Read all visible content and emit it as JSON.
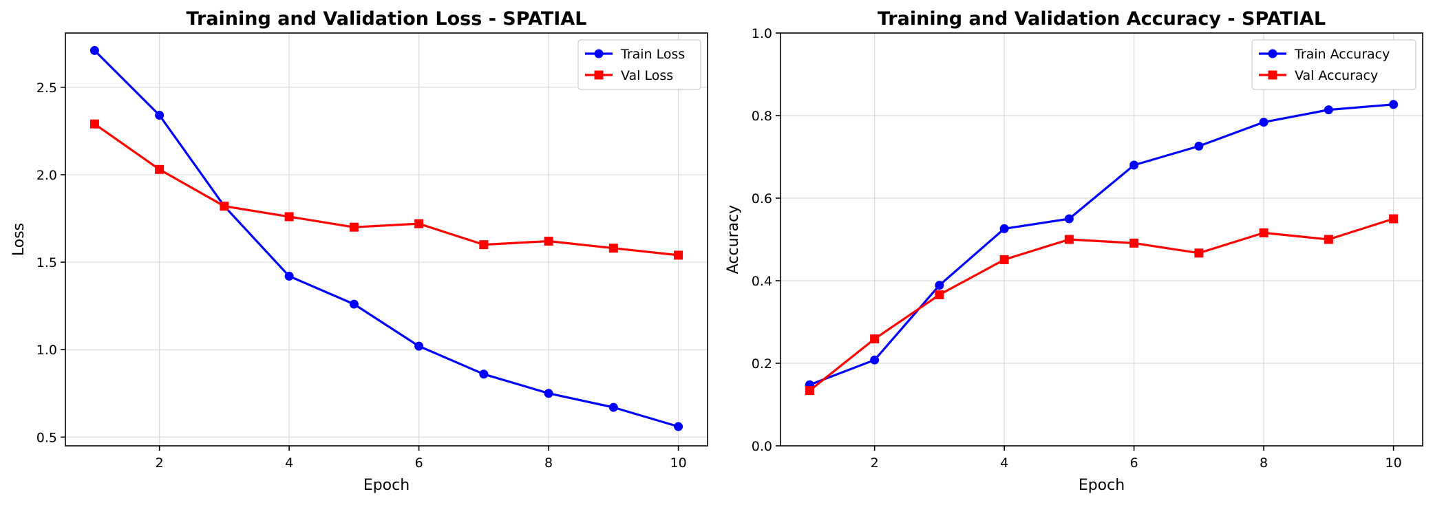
{
  "colors": {
    "train": "#0000ff",
    "val": "#ff0000"
  },
  "chart_data": [
    {
      "type": "line",
      "title": "Training and Validation Loss - SPATIAL",
      "xlabel": "Epoch",
      "ylabel": "Loss",
      "x": [
        1,
        2,
        3,
        4,
        5,
        6,
        7,
        8,
        9,
        10
      ],
      "xlim": [
        0.55,
        10.45
      ],
      "ylim": [
        0.45,
        2.81
      ],
      "xticks": [
        2,
        4,
        6,
        8,
        10
      ],
      "xtick_labels": [
        "2",
        "4",
        "6",
        "8",
        "10"
      ],
      "yticks": [
        0.5,
        1.0,
        1.5,
        2.0,
        2.5
      ],
      "ytick_labels": [
        "0.5",
        "1.0",
        "1.5",
        "2.0",
        "2.5"
      ],
      "grid": true,
      "legend_position": "top-right",
      "series": [
        {
          "name": "Train Loss",
          "marker": "circle",
          "color": "#0000ff",
          "values": [
            2.71,
            2.34,
            1.82,
            1.42,
            1.26,
            1.02,
            0.86,
            0.75,
            0.67,
            0.56
          ]
        },
        {
          "name": "Val Loss",
          "marker": "square",
          "color": "#ff0000",
          "values": [
            2.29,
            2.03,
            1.82,
            1.76,
            1.7,
            1.72,
            1.6,
            1.62,
            1.58,
            1.54
          ]
        }
      ]
    },
    {
      "type": "line",
      "title": "Training and Validation Accuracy - SPATIAL",
      "xlabel": "Epoch",
      "ylabel": "Accuracy",
      "x": [
        1,
        2,
        3,
        4,
        5,
        6,
        7,
        8,
        9,
        10
      ],
      "xlim": [
        0.55,
        10.45
      ],
      "ylim": [
        0.0,
        1.0
      ],
      "xticks": [
        2,
        4,
        6,
        8,
        10
      ],
      "xtick_labels": [
        "2",
        "4",
        "6",
        "8",
        "10"
      ],
      "yticks": [
        0.0,
        0.2,
        0.4,
        0.6,
        0.8,
        1.0
      ],
      "ytick_labels": [
        "0.0",
        "0.2",
        "0.4",
        "0.6",
        "0.8",
        "1.0"
      ],
      "grid": true,
      "legend_position": "top-right",
      "series": [
        {
          "name": "Train Accuracy",
          "marker": "circle",
          "color": "#0000ff",
          "values": [
            0.148,
            0.208,
            0.389,
            0.526,
            0.55,
            0.68,
            0.726,
            0.784,
            0.814,
            0.827
          ]
        },
        {
          "name": "Val Accuracy",
          "marker": "square",
          "color": "#ff0000",
          "values": [
            0.134,
            0.259,
            0.366,
            0.451,
            0.5,
            0.491,
            0.467,
            0.516,
            0.5,
            0.55
          ]
        }
      ]
    }
  ]
}
